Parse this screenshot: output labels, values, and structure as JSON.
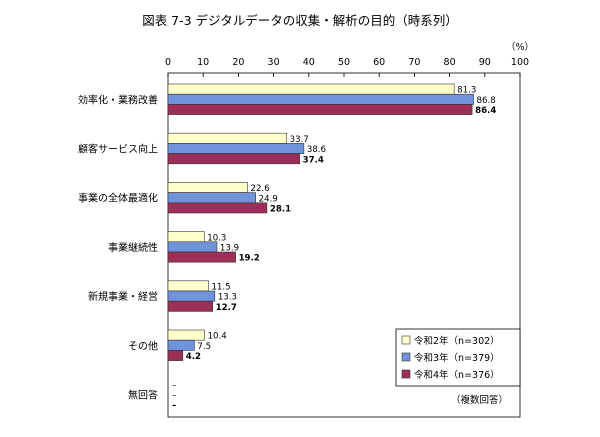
{
  "chart_data": {
    "type": "bar",
    "orientation": "horizontal",
    "title": "図表 7-3 デジタルデータの収集・解析の目的（時系列）",
    "unit_label": "（%）",
    "note": "（複数回答）",
    "xlim": [
      0,
      100
    ],
    "ticks": [
      0,
      10,
      20,
      30,
      40,
      50,
      60,
      70,
      80,
      90,
      100
    ],
    "categories": [
      "効率化・業務改善",
      "顧客サービス向上",
      "事業の全体最適化",
      "事業継続性",
      "新規事業・経営",
      "その他",
      "無回答"
    ],
    "series": [
      {
        "name": "令和2年（n=302）",
        "color": "#ffffcc",
        "values": [
          81.3,
          33.7,
          22.6,
          10.3,
          11.5,
          10.4,
          null
        ],
        "labels": [
          "81.3",
          "33.7",
          "22.6",
          "10.3",
          "11.5",
          "10.4",
          "–"
        ],
        "bold": false
      },
      {
        "name": "令和3年（n=379）",
        "color": "#7094dc",
        "values": [
          86.8,
          38.6,
          24.9,
          13.9,
          13.3,
          7.5,
          null
        ],
        "labels": [
          "86.8",
          "38.6",
          "24.9",
          "13.9",
          "13.3",
          "7.5",
          "–"
        ],
        "bold": false
      },
      {
        "name": "令和4年（n=376）",
        "color": "#9b2f5a",
        "values": [
          86.4,
          37.4,
          28.1,
          19.2,
          12.7,
          4.2,
          null
        ],
        "labels": [
          "86.4",
          "37.4",
          "28.1",
          "19.2",
          "12.7",
          "4.2",
          "–"
        ],
        "bold": true
      }
    ]
  }
}
